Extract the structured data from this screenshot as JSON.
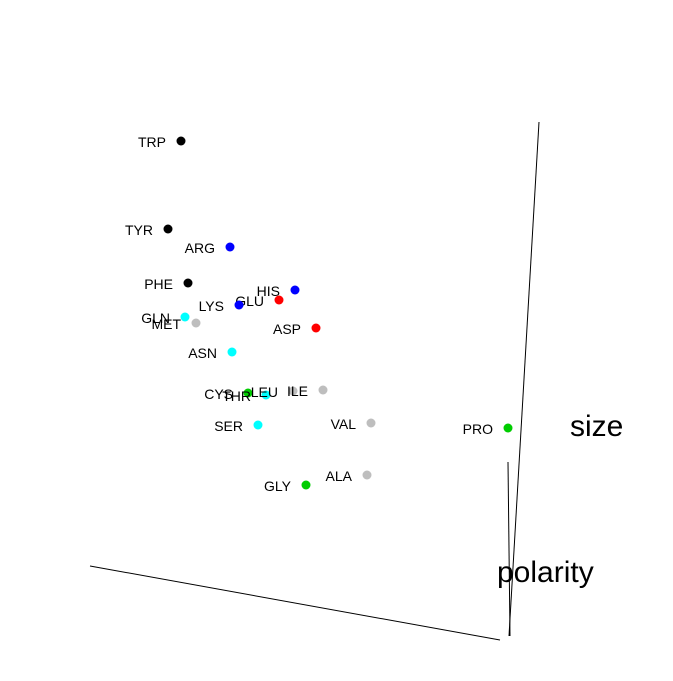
{
  "chart_data": {
    "type": "scatter",
    "projection": "3d",
    "axis_titles": {
      "size": "size",
      "polarity": "polarity"
    },
    "legend": "none",
    "grid": false,
    "points": [
      {
        "name": "TRP",
        "color": "#000000"
      },
      {
        "name": "TYR",
        "color": "#000000"
      },
      {
        "name": "ARG",
        "color": "#0000ff"
      },
      {
        "name": "PHE",
        "color": "#000000"
      },
      {
        "name": "HIS",
        "color": "#0000ff"
      },
      {
        "name": "GLU",
        "color": "#ff0000"
      },
      {
        "name": "LYS",
        "color": "#0000ff"
      },
      {
        "name": "GLN",
        "color": "#00ffff"
      },
      {
        "name": "MET",
        "color": "#bebebe"
      },
      {
        "name": "ASP",
        "color": "#ff0000"
      },
      {
        "name": "ASN",
        "color": "#00ffff"
      },
      {
        "name": "CYS",
        "color": "#00cd00"
      },
      {
        "name": "THR",
        "color": "#00ffff"
      },
      {
        "name": "LEU",
        "color": "#bebebe"
      },
      {
        "name": "ILE",
        "color": "#bebebe"
      },
      {
        "name": "SER",
        "color": "#00ffff"
      },
      {
        "name": "VAL",
        "color": "#bebebe"
      },
      {
        "name": "PRO",
        "color": "#00cd00"
      },
      {
        "name": "ALA",
        "color": "#bebebe"
      },
      {
        "name": "GLY",
        "color": "#00cd00"
      }
    ]
  }
}
